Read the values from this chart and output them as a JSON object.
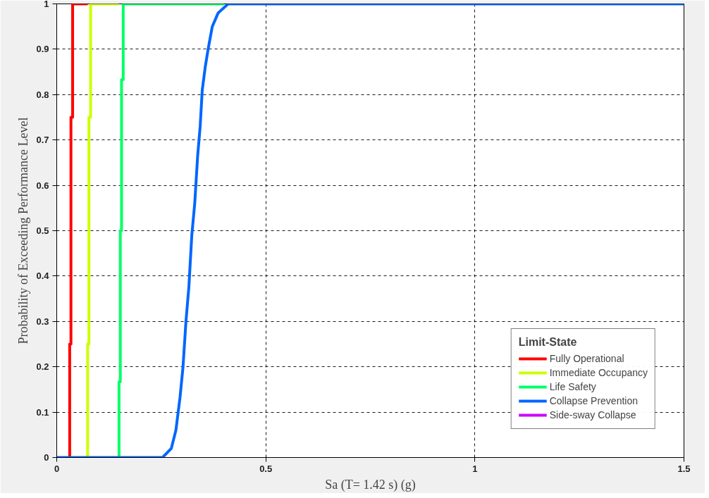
{
  "chart_data": {
    "type": "line",
    "xlabel": "Sa (T= 1.42 s) (g)",
    "ylabel": "Probability of Exceeding Performance Level",
    "legend_title": "Limit-State",
    "legend": "bottom right",
    "grid": true,
    "line_style": "solid",
    "marker": "none",
    "xlim": [
      0,
      1.5
    ],
    "ylim": [
      0,
      1
    ],
    "xticks": [
      0,
      0.5,
      1,
      1.5
    ],
    "yticks": [
      0,
      0.1,
      0.2,
      0.3,
      0.4,
      0.5,
      0.6,
      0.7,
      0.8,
      0.9,
      1
    ],
    "series": [
      {
        "name": "Fully Operational",
        "color": "#ff0000",
        "x": [
          0.031,
          0.031,
          0.034,
          0.034,
          0.038,
          0.038,
          0.074
        ],
        "values": [
          0,
          0.25,
          0.25,
          0.75,
          0.75,
          1,
          1
        ]
      },
      {
        "name": "Immediate Occupancy",
        "color": "#ccff00",
        "x": [
          0.074,
          0.074,
          0.077,
          0.077,
          0.081,
          0.081,
          0.149
        ],
        "values": [
          0,
          0.25,
          0.25,
          0.75,
          0.75,
          1,
          1
        ]
      },
      {
        "name": "Life Safety",
        "color": "#00ff66",
        "x": [
          0.149,
          0.149,
          0.152,
          0.152,
          0.155,
          0.155,
          0.159,
          0.159,
          0.4
        ],
        "values": [
          0,
          0.167,
          0.167,
          0.5,
          0.5,
          0.833,
          0.833,
          1,
          1
        ]
      },
      {
        "name": "Collapse Prevention",
        "color": "#0066ff",
        "x": [
          0,
          0.253,
          0.274,
          0.285,
          0.295,
          0.302,
          0.309,
          0.316,
          0.323,
          0.33,
          0.337,
          0.343,
          0.348,
          0.355,
          0.362,
          0.372,
          0.386,
          0.41,
          1.5
        ],
        "values": [
          0,
          0,
          0.02,
          0.06,
          0.134,
          0.2,
          0.3,
          0.376,
          0.49,
          0.56,
          0.665,
          0.73,
          0.81,
          0.86,
          0.9,
          0.95,
          0.98,
          1,
          1
        ]
      },
      {
        "name": "Side-sway Collapse",
        "color": "#cc00ff"
      }
    ]
  }
}
